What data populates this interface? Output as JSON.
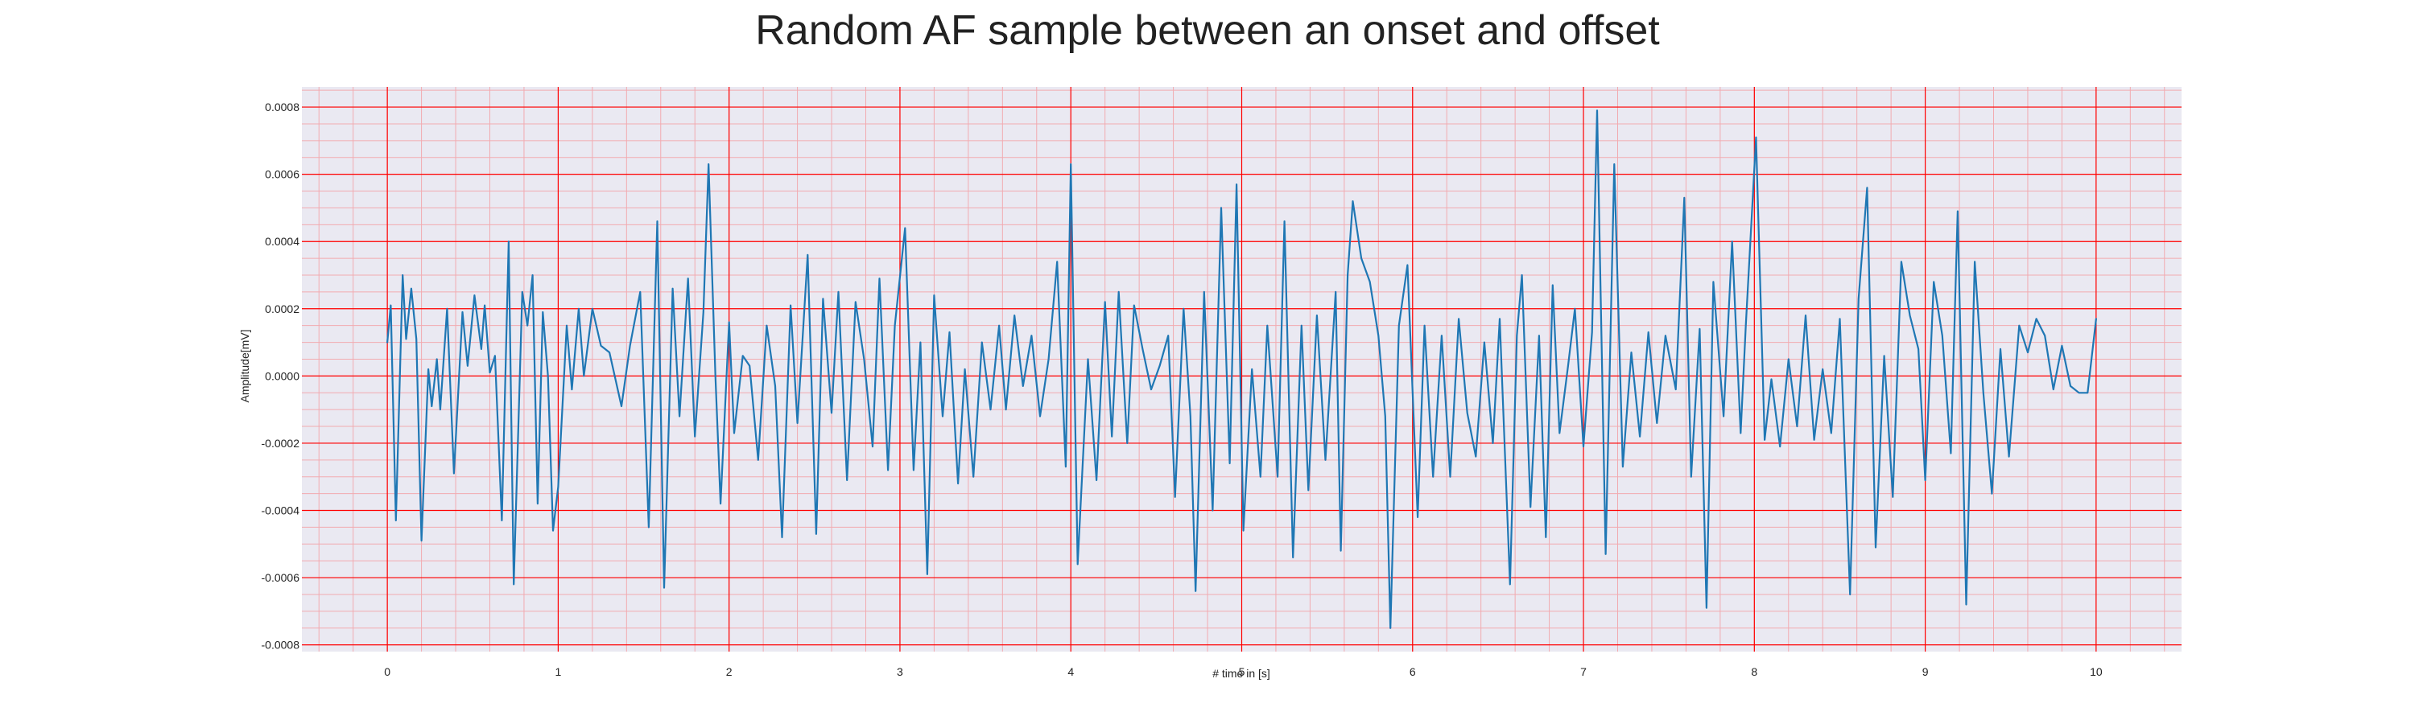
{
  "chart_data": {
    "type": "line",
    "title": "Random AF sample between an onset and offset",
    "xlabel": "# time in [s]",
    "ylabel": "Amplitude[mV]",
    "xlim": [
      -0.5,
      10.5
    ],
    "ylim": [
      -0.00082,
      0.00086
    ],
    "xticks": [
      0,
      1,
      2,
      3,
      4,
      5,
      6,
      7,
      8,
      9,
      10
    ],
    "xtick_labels": [
      "0",
      "1",
      "2",
      "3",
      "4",
      "5",
      "6",
      "7",
      "8",
      "9",
      "10"
    ],
    "yticks": [
      -0.0008,
      -0.0006,
      -0.0004,
      -0.0002,
      0.0,
      0.0002,
      0.0004,
      0.0006,
      0.0008
    ],
    "ytick_labels": [
      "-0.0008",
      "-0.0006",
      "-0.0004",
      "-0.0002",
      "0.0000",
      "0.0002",
      "0.0004",
      "0.0006",
      "0.0008"
    ],
    "grid": "on",
    "series": [
      {
        "color": "#1f77b4",
        "points": [
          [
            0.0,
            0.0001
          ],
          [
            0.02,
            0.00021
          ],
          [
            0.05,
            -0.00043
          ],
          [
            0.09,
            0.0003
          ],
          [
            0.11,
            0.00011
          ],
          [
            0.14,
            0.00026
          ],
          [
            0.17,
            0.00011
          ],
          [
            0.2,
            -0.00049
          ],
          [
            0.24,
            2e-05
          ],
          [
            0.26,
            -9e-05
          ],
          [
            0.29,
            5e-05
          ],
          [
            0.31,
            -0.0001
          ],
          [
            0.35,
            0.0002
          ],
          [
            0.39,
            -0.00029
          ],
          [
            0.44,
            0.00019
          ],
          [
            0.47,
            3e-05
          ],
          [
            0.51,
            0.00024
          ],
          [
            0.55,
            8e-05
          ],
          [
            0.57,
            0.00021
          ],
          [
            0.6,
            1e-05
          ],
          [
            0.63,
            6e-05
          ],
          [
            0.67,
            -0.00043
          ],
          [
            0.71,
            0.0004
          ],
          [
            0.74,
            -0.00062
          ],
          [
            0.79,
            0.00025
          ],
          [
            0.82,
            0.00015
          ],
          [
            0.85,
            0.0003
          ],
          [
            0.88,
            -0.00038
          ],
          [
            0.91,
            0.00019
          ],
          [
            0.94,
            0.0
          ],
          [
            0.97,
            -0.00046
          ],
          [
            1.0,
            -0.00033
          ],
          [
            1.05,
            0.00015
          ],
          [
            1.08,
            -4e-05
          ],
          [
            1.12,
            0.0002
          ],
          [
            1.15,
            0.0
          ],
          [
            1.2,
            0.0002
          ],
          [
            1.25,
            9e-05
          ],
          [
            1.3,
            7e-05
          ],
          [
            1.37,
            -9e-05
          ],
          [
            1.42,
            9e-05
          ],
          [
            1.48,
            0.00025
          ],
          [
            1.53,
            -0.00045
          ],
          [
            1.58,
            0.00046
          ],
          [
            1.62,
            -0.00063
          ],
          [
            1.67,
            0.00026
          ],
          [
            1.71,
            -0.00012
          ],
          [
            1.76,
            0.00029
          ],
          [
            1.8,
            -0.00018
          ],
          [
            1.85,
            0.00019
          ],
          [
            1.88,
            0.00063
          ],
          [
            1.92,
            0.0
          ],
          [
            1.95,
            -0.00038
          ],
          [
            2.0,
            0.00016
          ],
          [
            2.03,
            -0.00017
          ],
          [
            2.08,
            6e-05
          ],
          [
            2.12,
            3e-05
          ],
          [
            2.17,
            -0.00025
          ],
          [
            2.22,
            0.00015
          ],
          [
            2.27,
            -3e-05
          ],
          [
            2.31,
            -0.00048
          ],
          [
            2.36,
            0.00021
          ],
          [
            2.4,
            -0.00014
          ],
          [
            2.46,
            0.00036
          ],
          [
            2.51,
            -0.00047
          ],
          [
            2.55,
            0.00023
          ],
          [
            2.6,
            -0.00011
          ],
          [
            2.64,
            0.00025
          ],
          [
            2.69,
            -0.00031
          ],
          [
            2.74,
            0.00022
          ],
          [
            2.79,
            5e-05
          ],
          [
            2.84,
            -0.00021
          ],
          [
            2.88,
            0.00029
          ],
          [
            2.93,
            -0.00028
          ],
          [
            2.97,
            0.00015
          ],
          [
            3.03,
            0.00044
          ],
          [
            3.08,
            -0.00028
          ],
          [
            3.12,
            0.0001
          ],
          [
            3.16,
            -0.00059
          ],
          [
            3.2,
            0.00024
          ],
          [
            3.25,
            -0.00012
          ],
          [
            3.29,
            0.00013
          ],
          [
            3.34,
            -0.00032
          ],
          [
            3.38,
            2e-05
          ],
          [
            3.43,
            -0.0003
          ],
          [
            3.48,
            0.0001
          ],
          [
            3.53,
            -0.0001
          ],
          [
            3.58,
            0.00015
          ],
          [
            3.62,
            -0.0001
          ],
          [
            3.67,
            0.00018
          ],
          [
            3.72,
            -3e-05
          ],
          [
            3.77,
            0.00012
          ],
          [
            3.82,
            -0.00012
          ],
          [
            3.87,
            5e-05
          ],
          [
            3.92,
            0.00034
          ],
          [
            3.97,
            -0.00027
          ],
          [
            4.0,
            0.00063
          ],
          [
            4.04,
            -0.00056
          ],
          [
            4.1,
            5e-05
          ],
          [
            4.15,
            -0.00031
          ],
          [
            4.2,
            0.00022
          ],
          [
            4.24,
            -0.00018
          ],
          [
            4.28,
            0.00025
          ],
          [
            4.33,
            -0.0002
          ],
          [
            4.37,
            0.00021
          ],
          [
            4.42,
            8e-05
          ],
          [
            4.47,
            -4e-05
          ],
          [
            4.52,
            3e-05
          ],
          [
            4.57,
            0.00012
          ],
          [
            4.61,
            -0.00036
          ],
          [
            4.66,
            0.0002
          ],
          [
            4.7,
            -0.00012
          ],
          [
            4.73,
            -0.00064
          ],
          [
            4.78,
            0.00025
          ],
          [
            4.83,
            -0.0004
          ],
          [
            4.88,
            0.0005
          ],
          [
            4.93,
            -0.00026
          ],
          [
            4.97,
            0.00057
          ],
          [
            5.01,
            -0.00046
          ],
          [
            5.06,
            2e-05
          ],
          [
            5.11,
            -0.0003
          ],
          [
            5.15,
            0.00015
          ],
          [
            5.21,
            -0.0003
          ],
          [
            5.25,
            0.00046
          ],
          [
            5.3,
            -0.00054
          ],
          [
            5.35,
            0.00015
          ],
          [
            5.39,
            -0.00034
          ],
          [
            5.44,
            0.00018
          ],
          [
            5.49,
            -0.00025
          ],
          [
            5.55,
            0.00025
          ],
          [
            5.58,
            -0.00052
          ],
          [
            5.62,
            0.0003
          ],
          [
            5.65,
            0.00052
          ],
          [
            5.7,
            0.00035
          ],
          [
            5.75,
            0.00028
          ],
          [
            5.8,
            0.00012
          ],
          [
            5.84,
            -0.00012
          ],
          [
            5.87,
            -0.00075
          ],
          [
            5.92,
            0.00015
          ],
          [
            5.97,
            0.00033
          ],
          [
            6.03,
            -0.00042
          ],
          [
            6.07,
            0.00015
          ],
          [
            6.12,
            -0.0003
          ],
          [
            6.17,
            0.00012
          ],
          [
            6.22,
            -0.0003
          ],
          [
            6.27,
            0.00017
          ],
          [
            6.32,
            -0.00011
          ],
          [
            6.37,
            -0.00024
          ],
          [
            6.42,
            0.0001
          ],
          [
            6.47,
            -0.0002
          ],
          [
            6.51,
            0.00017
          ],
          [
            6.57,
            -0.00062
          ],
          [
            6.61,
            0.00012
          ],
          [
            6.64,
            0.0003
          ],
          [
            6.69,
            -0.00039
          ],
          [
            6.74,
            0.00012
          ],
          [
            6.78,
            -0.00048
          ],
          [
            6.82,
            0.00027
          ],
          [
            6.86,
            -0.00017
          ],
          [
            6.91,
            3e-05
          ],
          [
            6.95,
            0.0002
          ],
          [
            7.0,
            -0.00021
          ],
          [
            7.05,
            0.00013
          ],
          [
            7.08,
            0.00079
          ],
          [
            7.13,
            -0.00053
          ],
          [
            7.18,
            0.00063
          ],
          [
            7.23,
            -0.00027
          ],
          [
            7.28,
            7e-05
          ],
          [
            7.33,
            -0.00018
          ],
          [
            7.38,
            0.00013
          ],
          [
            7.43,
            -0.00014
          ],
          [
            7.48,
            0.00012
          ],
          [
            7.54,
            -4e-05
          ],
          [
            7.59,
            0.00053
          ],
          [
            7.63,
            -0.0003
          ],
          [
            7.68,
            0.00014
          ],
          [
            7.72,
            -0.00069
          ],
          [
            7.76,
            0.00028
          ],
          [
            7.82,
            -0.00012
          ],
          [
            7.87,
            0.0004
          ],
          [
            7.92,
            -0.00017
          ],
          [
            7.95,
            0.00015
          ],
          [
            8.01,
            0.00071
          ],
          [
            8.06,
            -0.00019
          ],
          [
            8.1,
            -1e-05
          ],
          [
            8.15,
            -0.00021
          ],
          [
            8.2,
            5e-05
          ],
          [
            8.25,
            -0.00015
          ],
          [
            8.3,
            0.00018
          ],
          [
            8.35,
            -0.00019
          ],
          [
            8.4,
            2e-05
          ],
          [
            8.45,
            -0.00017
          ],
          [
            8.5,
            0.00017
          ],
          [
            8.56,
            -0.00065
          ],
          [
            8.61,
            0.00023
          ],
          [
            8.66,
            0.00056
          ],
          [
            8.71,
            -0.00051
          ],
          [
            8.76,
            6e-05
          ],
          [
            8.81,
            -0.00036
          ],
          [
            8.86,
            0.00034
          ],
          [
            8.91,
            0.00018
          ],
          [
            8.96,
            8e-05
          ],
          [
            9.0,
            -0.00031
          ],
          [
            9.05,
            0.00028
          ],
          [
            9.1,
            0.00012
          ],
          [
            9.15,
            -0.00023
          ],
          [
            9.19,
            0.00049
          ],
          [
            9.24,
            -0.00068
          ],
          [
            9.29,
            0.00034
          ],
          [
            9.34,
            -5e-05
          ],
          [
            9.39,
            -0.00035
          ],
          [
            9.44,
            8e-05
          ],
          [
            9.49,
            -0.00024
          ],
          [
            9.55,
            0.00015
          ],
          [
            9.6,
            7e-05
          ],
          [
            9.65,
            0.00017
          ],
          [
            9.7,
            0.00012
          ],
          [
            9.75,
            -4e-05
          ],
          [
            9.8,
            9e-05
          ],
          [
            9.85,
            -3e-05
          ],
          [
            9.9,
            -5e-05
          ],
          [
            9.95,
            -5e-05
          ],
          [
            10.0,
            0.00017
          ]
        ]
      }
    ]
  }
}
